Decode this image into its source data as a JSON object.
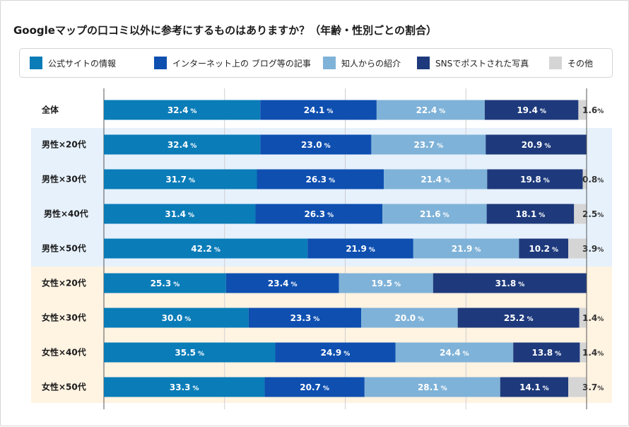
{
  "title": "Googleマップの口コミ以外に参考にするものはありますか？（年齢・性別ごとの割合）",
  "colors": {
    "series": [
      "#0a7cb8",
      "#0e4fb0",
      "#7fb2d8",
      "#1e3a7c",
      "#d5d5d5"
    ],
    "band_male": "#e6f1fc",
    "band_female": "#fff3e2"
  },
  "chart_data": {
    "type": "bar",
    "orientation": "horizontal",
    "stacked": true,
    "unit": "%",
    "categories": [
      "全体",
      "男性×20代",
      "男性×30代",
      "男性×40代",
      "男性×50代",
      "女性×20代",
      "女性×30代",
      "女性×40代",
      "女性×50代"
    ],
    "series": [
      {
        "name": "公式サイトの情報",
        "values": [
          32.4,
          32.4,
          31.7,
          31.4,
          42.2,
          25.3,
          30.0,
          35.5,
          33.3
        ]
      },
      {
        "name": "インターネット上の ブログ等の記事",
        "values": [
          24.1,
          23.0,
          26.3,
          26.3,
          21.9,
          23.4,
          23.3,
          24.9,
          20.7
        ]
      },
      {
        "name": "知人からの紹介",
        "values": [
          22.4,
          23.7,
          21.4,
          21.6,
          21.9,
          19.5,
          20.0,
          24.4,
          28.1
        ]
      },
      {
        "name": "SNSでポストされた写真",
        "values": [
          19.4,
          20.9,
          19.8,
          18.1,
          10.2,
          31.8,
          25.2,
          13.8,
          14.1
        ]
      },
      {
        "name": "その他",
        "values": [
          1.6,
          0.0,
          0.8,
          2.5,
          3.9,
          0.0,
          1.4,
          1.4,
          3.7
        ]
      }
    ],
    "value_labels": [
      [
        "32.4",
        "24.1",
        "22.4",
        "19.4",
        "1.6"
      ],
      [
        "32.4",
        "23.0",
        "23.7",
        "20.9",
        ""
      ],
      [
        "31.7",
        "26.3",
        "21.4",
        "19.8",
        "0.8"
      ],
      [
        "31.4",
        "26.3",
        "21.6",
        "18.1",
        "2.5"
      ],
      [
        "42.2",
        "21.9",
        "21.9",
        "10.2",
        "3.9"
      ],
      [
        "25.3",
        "23.4",
        "19.5",
        "31.8",
        ""
      ],
      [
        "30.0",
        "23.3",
        "20.0",
        "25.2",
        "1.4"
      ],
      [
        "35.5",
        "24.9",
        "24.4",
        "13.8",
        "1.4"
      ],
      [
        "33.3",
        "20.7",
        "28.1",
        "14.1",
        "3.7"
      ]
    ],
    "xlim": [
      0,
      100
    ],
    "legend_position": "top",
    "grid": true
  }
}
